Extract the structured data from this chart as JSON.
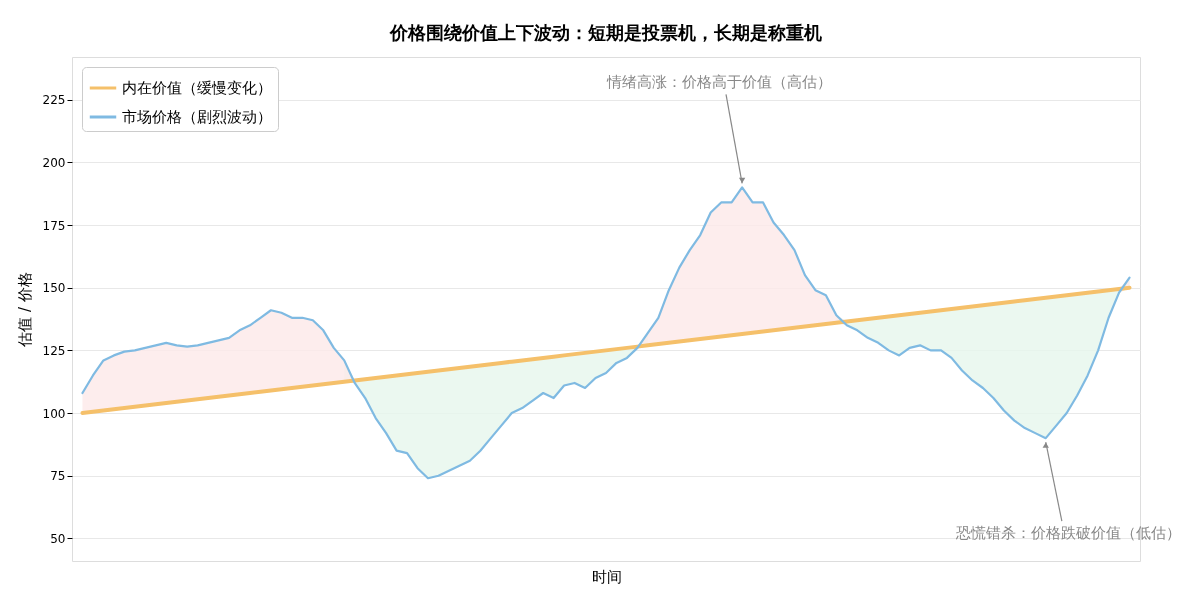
{
  "chart_data": {
    "type": "line",
    "title": "价格围绕价值上下波动：短期是投票机，长期是称重机",
    "xlabel": "时间",
    "ylabel": "估值 / 价格",
    "categories": [
      null,
      null,
      null,
      null,
      null,
      null,
      null,
      null,
      null,
      null,
      null,
      null,
      null,
      null,
      null,
      null,
      null,
      null,
      null,
      null,
      null,
      null,
      null,
      null,
      null,
      null,
      null,
      null,
      null,
      null,
      null,
      null,
      null,
      null,
      null,
      null,
      null,
      null,
      null,
      null,
      null,
      null,
      null,
      null,
      null,
      null,
      null,
      null,
      null,
      null,
      null,
      null,
      null,
      null,
      null,
      null,
      null,
      null,
      null,
      null,
      null,
      null,
      null,
      null,
      null,
      null,
      null,
      null,
      null,
      null,
      null,
      null,
      null,
      null,
      null,
      null,
      null,
      null,
      null,
      null,
      null,
      null,
      null,
      null,
      null,
      null,
      null,
      null,
      null,
      null,
      null,
      null,
      null,
      null,
      null,
      null,
      null,
      null,
      null,
      null,
      null
    ],
    "series": [
      {
        "name": "内在价值（缓慢变化）",
        "color": "#f5c06a",
        "values": [
          100,
          100.5,
          101,
          101.5,
          102,
          102.5,
          103,
          103.5,
          104,
          104.5,
          105,
          105.5,
          106,
          106.5,
          107,
          107.5,
          108,
          108.5,
          109,
          109.5,
          110,
          110.5,
          111,
          111.5,
          112,
          112.5,
          113,
          113.5,
          114,
          114.5,
          115,
          115.5,
          116,
          116.5,
          117,
          117.5,
          118,
          118.5,
          119,
          119.5,
          120,
          120.5,
          121,
          121.5,
          122,
          122.5,
          123,
          123.5,
          124,
          124.5,
          125,
          125.5,
          126,
          126.5,
          127,
          127.5,
          128,
          128.5,
          129,
          129.5,
          130,
          130.5,
          131,
          131.5,
          132,
          132.5,
          133,
          133.5,
          134,
          134.5,
          135,
          135.5,
          136,
          136.5,
          137,
          137.5,
          138,
          138.5,
          139,
          139.5,
          140,
          140.5,
          141,
          141.5,
          142,
          142.5,
          143,
          143.5,
          144,
          144.5,
          145,
          145.5,
          146,
          146.5,
          147,
          147.5,
          148,
          148.5,
          149,
          149.5,
          150
        ],
        "upper": [
          null,
          null,
          null,
          null,
          null,
          null,
          null,
          null,
          null,
          null,
          null,
          null,
          null,
          null,
          null,
          null,
          null,
          null,
          null,
          null,
          null,
          null,
          null,
          null,
          null,
          121,
          113,
          113.5,
          114,
          114.5,
          115,
          115.5,
          116,
          116.5,
          117,
          117.5,
          118,
          118.5,
          119,
          119.5,
          120,
          120.5,
          121,
          121.5,
          122,
          122.5,
          123,
          123.5,
          124,
          124.5,
          125,
          125.5,
          126,
          126.5,
          132,
          null,
          null,
          null,
          null,
          null,
          null,
          null,
          null,
          null,
          null,
          null,
          null,
          null,
          null,
          null,
          null,
          null,
          139,
          136.5,
          137,
          137.5,
          138,
          138.5,
          139,
          139.5,
          140,
          140.5,
          141,
          141.5,
          142,
          142.5,
          143,
          143.5,
          144,
          144.5,
          145,
          145.5,
          146,
          146.5,
          147,
          147.5,
          148,
          148.5,
          149,
          149.5,
          154
        ],
        "lower": [
          null,
          null,
          null,
          null,
          null,
          null,
          null,
          null,
          null,
          null,
          null,
          null,
          null,
          null,
          null,
          null,
          null,
          null,
          null,
          null,
          null,
          null,
          null,
          null,
          null,
          112.5,
          112,
          106,
          98,
          92,
          85,
          84,
          78,
          74,
          75,
          77,
          79,
          81,
          85,
          90,
          95,
          100,
          102,
          105,
          108,
          106,
          111,
          112,
          110,
          114,
          116,
          120,
          122,
          126,
          127,
          null,
          null,
          null,
          null,
          null,
          null,
          null,
          null,
          null,
          null,
          null,
          null,
          null,
          null,
          null,
          null,
          null,
          136,
          135,
          133,
          130,
          128,
          125,
          123,
          126,
          127,
          125,
          125,
          122,
          117,
          113,
          110,
          106,
          101,
          97,
          94,
          92,
          90,
          95,
          100,
          107,
          115,
          125,
          138,
          148,
          150
        ]
      },
      {
        "name": "市场价格（剧烈波动）",
        "color": "#7fbae2",
        "values": [
          108,
          115,
          121,
          123,
          124.5,
          125,
          126,
          127,
          128,
          127,
          126.5,
          127,
          128,
          129,
          130,
          133,
          135,
          138,
          141,
          140,
          138,
          138,
          137,
          133,
          126,
          121,
          112,
          106,
          98,
          92,
          85,
          84,
          78,
          74,
          75,
          77,
          79,
          81,
          85,
          90,
          95,
          100,
          102,
          105,
          108,
          106,
          111,
          112,
          110,
          114,
          116,
          120,
          122,
          126,
          132,
          138,
          149,
          158,
          165,
          171,
          180,
          184,
          184,
          190,
          184,
          184,
          176,
          171,
          165,
          155,
          149,
          147,
          139,
          135,
          133,
          130,
          128,
          125,
          123,
          126,
          127,
          125,
          125,
          122,
          117,
          113,
          110,
          106,
          101,
          97,
          94,
          92,
          90,
          95,
          100,
          107,
          115,
          125,
          138,
          148,
          154
        ],
        "upper": [
          108,
          115,
          121,
          123,
          124.5,
          125,
          126,
          127,
          128,
          127,
          126.5,
          127,
          128,
          129,
          130,
          133,
          135,
          138,
          141,
          140,
          138,
          138,
          137,
          133,
          126,
          121,
          113,
          null,
          null,
          null,
          null,
          null,
          null,
          null,
          null,
          null,
          null,
          null,
          null,
          null,
          null,
          null,
          null,
          null,
          null,
          null,
          null,
          null,
          null,
          null,
          null,
          null,
          null,
          126.5,
          132,
          138,
          149,
          158,
          165,
          171,
          180,
          184,
          184,
          190,
          184,
          184,
          176,
          171,
          165,
          155,
          149,
          147,
          139,
          136.5,
          null,
          null,
          null,
          null,
          null,
          null,
          null,
          null,
          null,
          null,
          null,
          null,
          null,
          null,
          null,
          null,
          null,
          null,
          null,
          null,
          null,
          null,
          null,
          null,
          null,
          149.5,
          154
        ],
        "lower": [
          100,
          100.5,
          101,
          101.5,
          102,
          102.5,
          103,
          103.5,
          104,
          104.5,
          105,
          105.5,
          106,
          106.5,
          107,
          107.5,
          108,
          108.5,
          109,
          109.5,
          110,
          110.5,
          111,
          111.5,
          112,
          112.5,
          112,
          null,
          null,
          null,
          null,
          null,
          null,
          null,
          null,
          null,
          null,
          null,
          null,
          null,
          null,
          null,
          null,
          null,
          null,
          null,
          null,
          null,
          null,
          null,
          null,
          null,
          null,
          126,
          127,
          127.5,
          128,
          128.5,
          129,
          129.5,
          130,
          130.5,
          131,
          131.5,
          132,
          132.5,
          133,
          133.5,
          134,
          134.5,
          135,
          135.5,
          136,
          135,
          null,
          null,
          null,
          null,
          null,
          null,
          null,
          null,
          null,
          null,
          null,
          null,
          null,
          null,
          null,
          null,
          null,
          null,
          null,
          null,
          null,
          null,
          null,
          null,
          null,
          148,
          150
        ]
      }
    ],
    "ylim": [
      41,
      242
    ],
    "yticks": [
      50,
      75,
      100,
      125,
      150,
      175,
      200,
      225
    ],
    "grid": "y",
    "legend": "top left",
    "annotations": [
      "情绪高涨：价格高于价值（高估）",
      "恐慌错杀：价格跌破价值（低估）"
    ]
  }
}
